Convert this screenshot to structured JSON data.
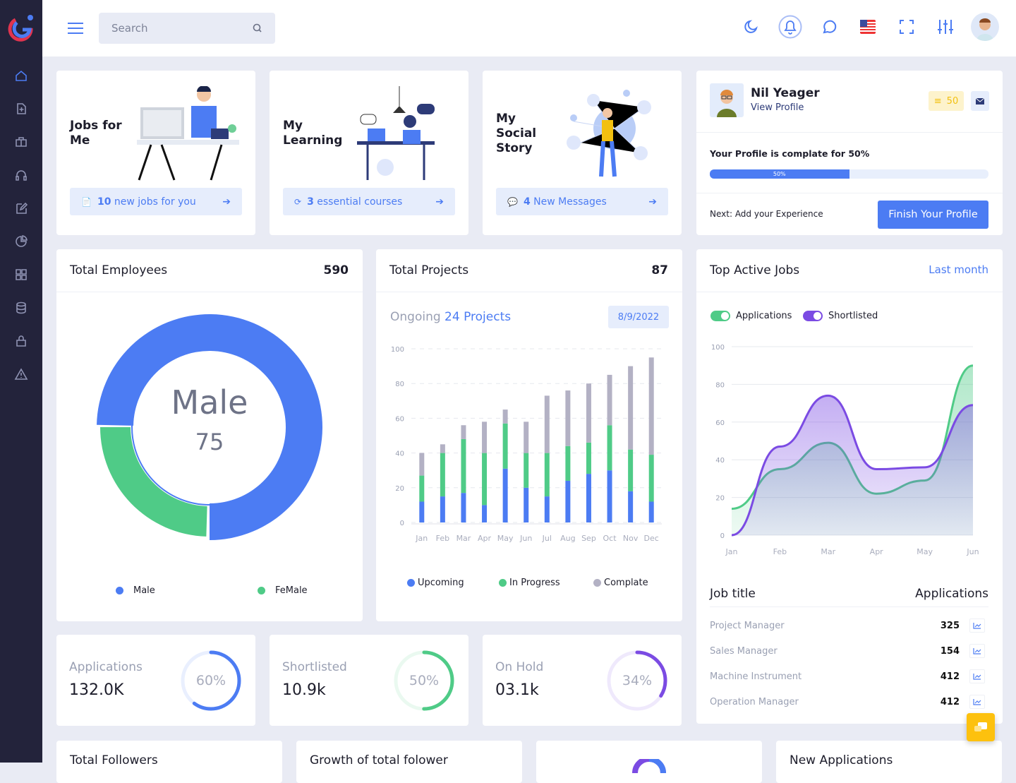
{
  "header": {
    "search_placeholder": "Search",
    "icons": [
      "menu-icon",
      "search-icon",
      "moon-icon",
      "bell-icon",
      "chat-icon",
      "us-flag-icon",
      "fullscreen-icon",
      "sliders-icon",
      "avatar"
    ]
  },
  "sidebar": {
    "icons": [
      "home-icon",
      "file-plus-icon",
      "briefcase-icon",
      "headphones-icon",
      "edit-icon",
      "pie-chart-icon",
      "grid-icon",
      "database-icon",
      "lock-icon",
      "alert-icon"
    ]
  },
  "promos": [
    {
      "title": "Jobs for Me",
      "btn_bold": "10",
      "btn_text": "new jobs for you",
      "icon": "file-icon"
    },
    {
      "title": "My Learning",
      "btn_bold": "3",
      "btn_text": "essential courses",
      "icon": "refresh-icon"
    },
    {
      "title": "My Social Story",
      "btn_bold": "4",
      "btn_text": "New Messages",
      "icon": "message-icon"
    }
  ],
  "profile": {
    "name": "Nil Yeager",
    "link": "View Profile",
    "coins": "50",
    "complete_text": "Your Profile is complate for 50%",
    "progress": 50,
    "progress_label": "50%",
    "next": "Next: Add your Experience",
    "button": "Finish Your Profile"
  },
  "employees": {
    "title": "Total Employees",
    "value": "590",
    "center_label": "Male",
    "center_value": "75",
    "male": 75,
    "female": 25,
    "legend": [
      "Male",
      "FeMale"
    ],
    "colors": {
      "male": "#4c7cf3",
      "female": "#4fcb87"
    }
  },
  "projects": {
    "title": "Total Projects",
    "value": "87",
    "ongoing_prefix": "Ongoing",
    "ongoing": "24 Projects",
    "date": "8/9/2022"
  },
  "top_jobs": {
    "title": "Top Active Jobs",
    "filter": "Last month",
    "col1": "Job title",
    "col2": "Applications",
    "rows": [
      {
        "title": "Project Manager",
        "count": "325"
      },
      {
        "title": "Sales Manager",
        "count": "154"
      },
      {
        "title": "Machine Instrument",
        "count": "412"
      },
      {
        "title": "Operation Manager",
        "count": "412"
      }
    ]
  },
  "stats": [
    {
      "label": "Applications",
      "value": "132.0K",
      "percent": 60,
      "percent_label": "60%",
      "color": "#4c7cf3"
    },
    {
      "label": "Shortlisted",
      "value": "10.9k",
      "percent": 50,
      "percent_label": "50%",
      "color": "#4fcb87"
    },
    {
      "label": "On Hold",
      "value": "03.1k",
      "percent": 34,
      "percent_label": "34%",
      "color": "#7b4be3"
    }
  ],
  "bottom": [
    "Total Followers",
    "Growth of total folower",
    "",
    "New Applications"
  ],
  "chart_data": [
    {
      "type": "bar",
      "stacked": true,
      "categories": [
        "Jan",
        "Feb",
        "Mar",
        "Apr",
        "May",
        "Jun",
        "Jul",
        "Aug",
        "Sep",
        "Oct",
        "Nov",
        "Dec"
      ],
      "ylim": [
        0,
        100
      ],
      "yticks": [
        0,
        20,
        40,
        60,
        80,
        100
      ],
      "grid": true,
      "legend": "bottom",
      "series": [
        {
          "name": "Upcoming",
          "color": "#4c7cf3",
          "values": [
            12,
            15,
            17,
            10,
            31,
            20,
            15,
            24,
            28,
            30,
            18,
            12
          ]
        },
        {
          "name": "In Progress",
          "color": "#4fcb87",
          "values": [
            15,
            25,
            31,
            30,
            26,
            20,
            25,
            20,
            18,
            26,
            24,
            27
          ]
        },
        {
          "name": "Complate",
          "color": "#b3b1c4",
          "values": [
            13,
            5,
            8,
            18,
            8,
            18,
            33,
            32,
            34,
            29,
            48,
            56
          ]
        }
      ]
    },
    {
      "type": "area",
      "categories": [
        "Jan",
        "Feb",
        "Mar",
        "Apr",
        "May",
        "Jun"
      ],
      "ylim": [
        0,
        100
      ],
      "yticks": [
        0,
        20,
        40,
        60,
        80,
        100
      ],
      "grid": true,
      "legend": "top-left",
      "series": [
        {
          "name": "Applications",
          "color": "#4fcb87",
          "values": [
            14,
            35,
            49,
            22,
            29,
            90
          ]
        },
        {
          "name": "Shortlisted",
          "color": "#7b4be3",
          "values": [
            0,
            47,
            74,
            35,
            36,
            69
          ]
        }
      ]
    }
  ]
}
